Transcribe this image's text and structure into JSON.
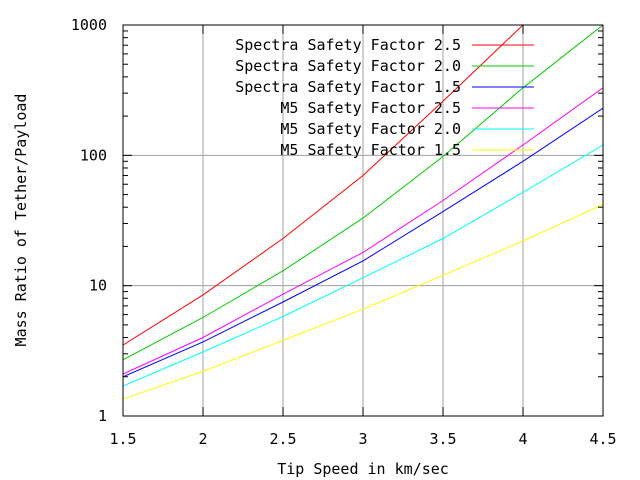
{
  "chart_data": {
    "type": "line",
    "title": "",
    "xlabel": "Tip Speed in km/sec",
    "ylabel": "Mass Ratio of Tether/Payload",
    "xlim": [
      1.5,
      4.5
    ],
    "ylim": [
      1,
      1000
    ],
    "yscale": "log",
    "grid": true,
    "legend_position": "top-left",
    "x_ticks": [
      1.5,
      2,
      2.5,
      3,
      3.5,
      4,
      4.5
    ],
    "x_tick_labels": [
      "1.5",
      "2",
      "2.5",
      "3",
      "3.5",
      "4",
      "4.5"
    ],
    "y_ticks": [
      1,
      10,
      100,
      1000
    ],
    "y_tick_labels": [
      "1",
      "10",
      "100",
      "1000"
    ],
    "series": [
      {
        "name": "Spectra Safety Factor 2.5",
        "color": "#ff0000",
        "x": [
          1.5,
          2,
          2.5,
          3,
          3.5,
          4
        ],
        "y": [
          3.5,
          8.5,
          23,
          70,
          260,
          1000
        ]
      },
      {
        "name": "Spectra Safety Factor 2.0",
        "color": "#00cc00",
        "x": [
          1.5,
          2,
          2.5,
          3,
          3.5,
          4,
          4.5
        ],
        "y": [
          2.7,
          5.7,
          13,
          33,
          98,
          330,
          1000
        ]
      },
      {
        "name": "Spectra Safety Factor 1.5",
        "color": "#0000ff",
        "x": [
          1.5,
          2,
          2.5,
          3,
          3.5,
          4,
          4.5
        ],
        "y": [
          2.0,
          3.7,
          7.5,
          15.5,
          37,
          90,
          230
        ]
      },
      {
        "name": "M5 Safety Factor 2.5",
        "color": "#ff00ff",
        "x": [
          1.5,
          2,
          2.5,
          3,
          3.5,
          4,
          4.5
        ],
        "y": [
          2.1,
          4.0,
          8.6,
          18,
          45,
          120,
          330
        ]
      },
      {
        "name": "M5 Safety Factor 2.0",
        "color": "#00ffff",
        "x": [
          1.5,
          2,
          2.5,
          3,
          3.5,
          4,
          4.5
        ],
        "y": [
          1.7,
          3.1,
          5.8,
          11.5,
          23,
          52,
          120
        ]
      },
      {
        "name": "M5 Safety Factor 1.5",
        "color": "#ffff00",
        "x": [
          1.5,
          2,
          2.5,
          3,
          3.5,
          4,
          4.5
        ],
        "y": [
          1.35,
          2.2,
          3.8,
          6.6,
          12,
          22,
          42
        ]
      }
    ]
  }
}
